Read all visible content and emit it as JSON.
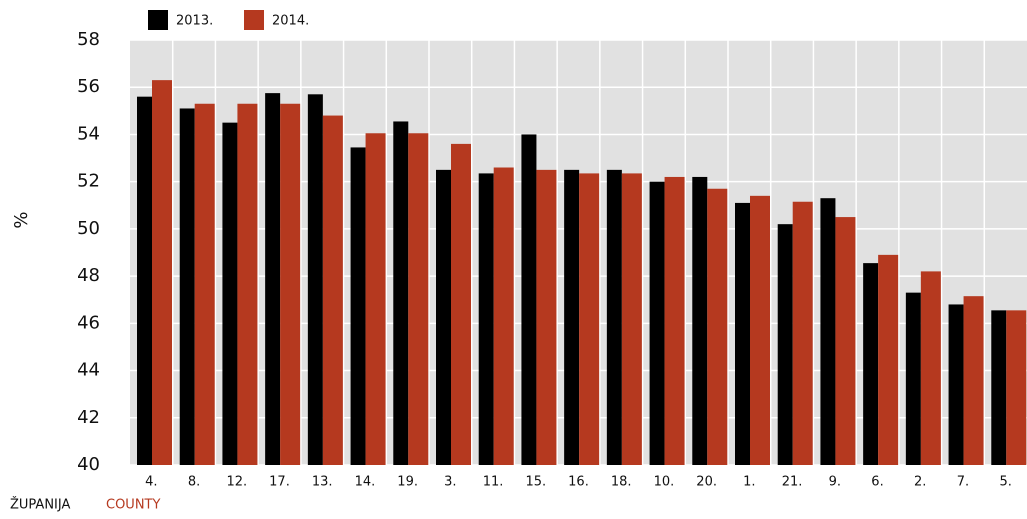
{
  "chart_data": {
    "type": "bar",
    "categories": [
      "4.",
      "8.",
      "12.",
      "17.",
      "13.",
      "14.",
      "19.",
      "3.",
      "11.",
      "15.",
      "16.",
      "18.",
      "10.",
      "20.",
      "1.",
      "21.",
      "9.",
      "6.",
      "2.",
      "7.",
      "5."
    ],
    "series": [
      {
        "name": "2013.",
        "color": "#000000",
        "values": [
          55.6,
          55.1,
          54.5,
          55.75,
          55.7,
          53.45,
          54.55,
          52.5,
          52.35,
          54.0,
          52.5,
          52.5,
          52.0,
          52.2,
          51.1,
          50.2,
          51.3,
          48.55,
          47.3,
          46.8,
          46.55
        ]
      },
      {
        "name": "2014.",
        "color": "#b5391f",
        "values": [
          56.3,
          55.3,
          55.3,
          55.3,
          54.8,
          54.05,
          54.05,
          53.6,
          52.6,
          52.5,
          52.35,
          52.35,
          52.2,
          51.7,
          51.4,
          51.15,
          50.5,
          48.9,
          48.2,
          47.15,
          46.55
        ]
      }
    ],
    "ylabel": "%",
    "xlabel": "ŽUPANIJA",
    "xlabel_en": "COUNTY",
    "ylim": [
      40,
      58
    ],
    "yticks": [
      40,
      42,
      44,
      46,
      48,
      50,
      52,
      54,
      56,
      58
    ],
    "grid": true,
    "legend": "top"
  }
}
